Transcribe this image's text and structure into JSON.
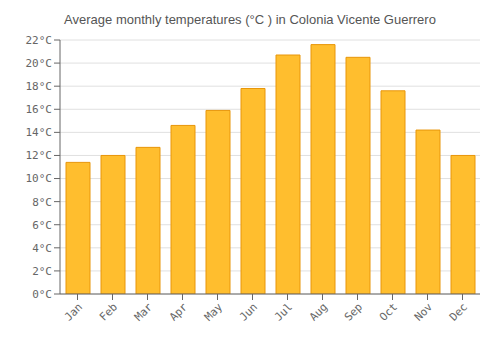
{
  "chart_data": {
    "type": "bar",
    "title": "Average monthly temperatures (°C ) in Colonia Vicente Guerrero",
    "categories": [
      "Jan",
      "Feb",
      "Mar",
      "Apr",
      "May",
      "Jun",
      "Jul",
      "Aug",
      "Sep",
      "Oct",
      "Nov",
      "Dec"
    ],
    "values": [
      11.4,
      12.0,
      12.7,
      14.6,
      15.9,
      17.8,
      20.7,
      21.6,
      20.5,
      17.6,
      14.2,
      12.0
    ],
    "color": "#FFBE2E",
    "ylim": [
      0,
      22
    ],
    "yticks": [
      {
        "value": 0,
        "label": "0°C"
      },
      {
        "value": 2,
        "label": "2°C"
      },
      {
        "value": 4,
        "label": "4°C"
      },
      {
        "value": 6,
        "label": "6°C"
      },
      {
        "value": 8,
        "label": "8°C"
      },
      {
        "value": 10,
        "label": "10°C"
      },
      {
        "value": 12,
        "label": "12°C"
      },
      {
        "value": 14,
        "label": "14°C"
      },
      {
        "value": 16,
        "label": "16°C"
      },
      {
        "value": 18,
        "label": "18°C"
      },
      {
        "value": 20,
        "label": "20°C"
      },
      {
        "value": 22,
        "label": "22°C"
      }
    ],
    "grid": true
  }
}
